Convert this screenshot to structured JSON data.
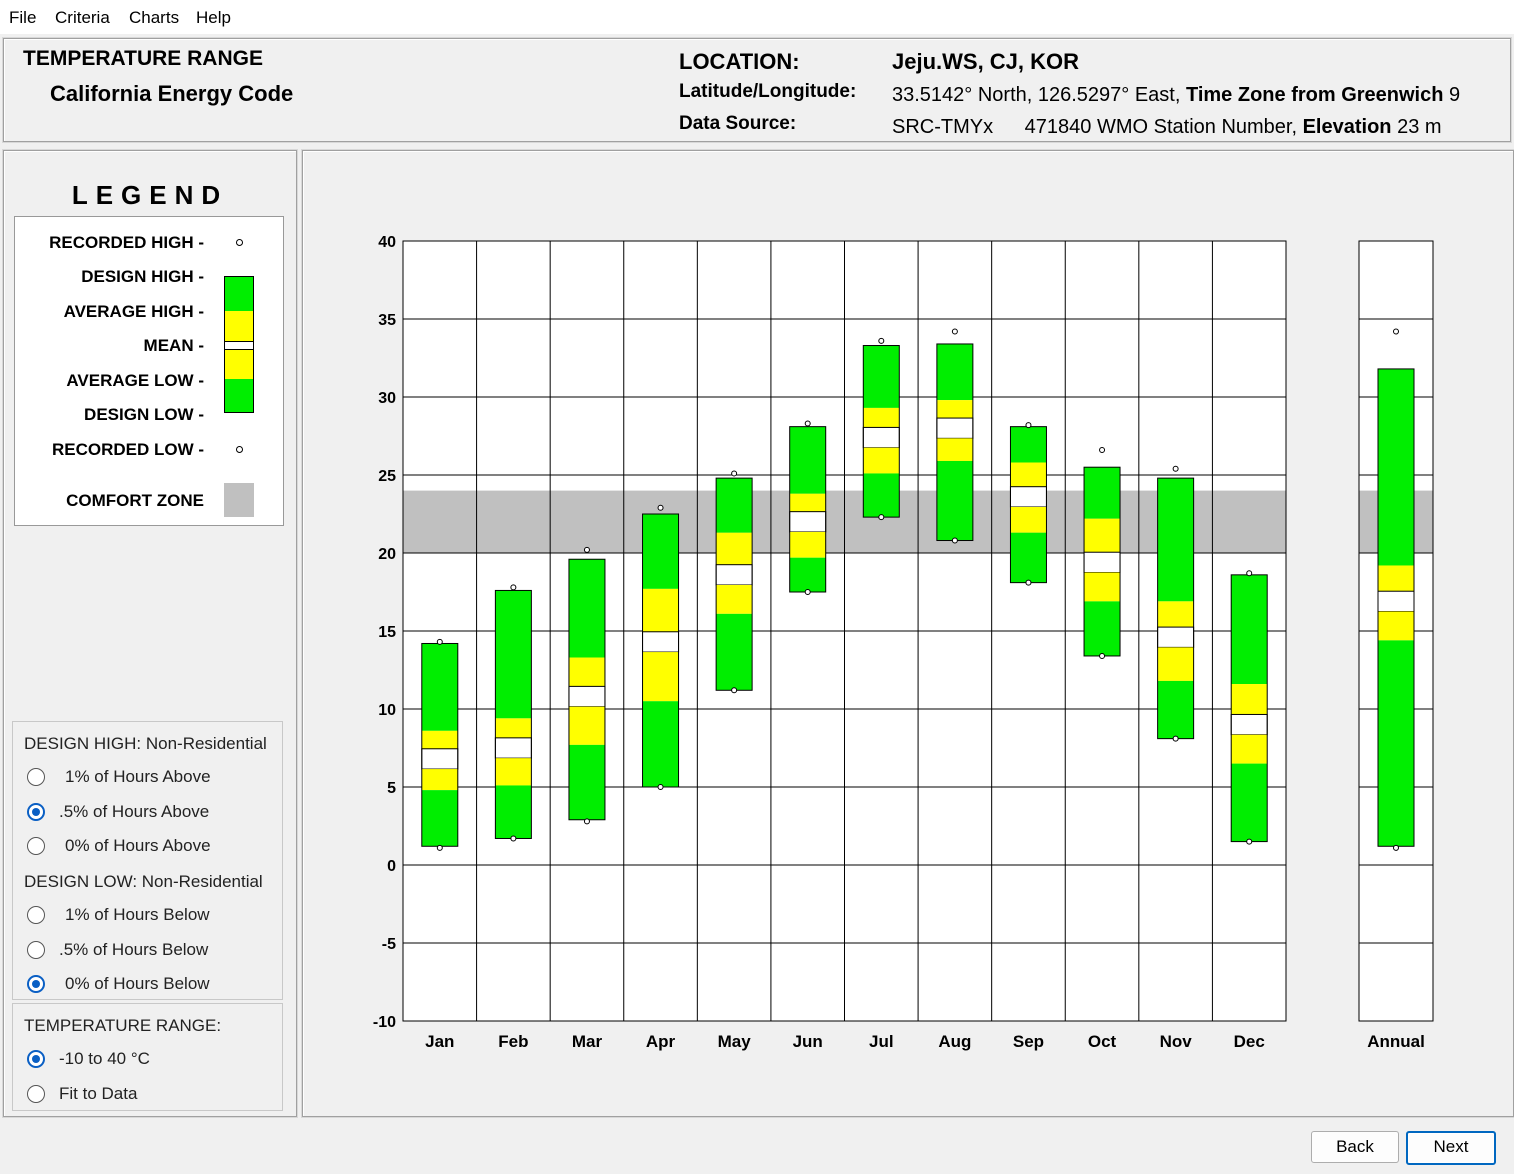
{
  "menu": [
    "File",
    "Criteria",
    "Charts",
    "Help"
  ],
  "header": {
    "title": "TEMPERATURE RANGE",
    "subtitle": "California Energy Code",
    "location_label": "LOCATION:",
    "location_value": "Jeju.WS, CJ, KOR",
    "latlong_label": "Latitude/Longitude:",
    "latlong_value": "33.5142° North, 126.5297° East,",
    "timezone_label": "Time Zone from Greenwich",
    "timezone_value": "9",
    "source_label": "Data Source:",
    "source_value": "SRC-TMYx",
    "station_value": "471840 WMO Station Number,",
    "elevation_label": "Elevation",
    "elevation_value": "23 m"
  },
  "legend": {
    "title": "LEGEND",
    "recorded_high": "RECORDED HIGH -",
    "design_high": "DESIGN HIGH -",
    "average_high": "AVERAGE HIGH -",
    "mean": "MEAN -",
    "average_low": "AVERAGE LOW -",
    "design_low": "DESIGN LOW -",
    "recorded_low": "RECORDED LOW -",
    "comfort_zone": "COMFORT ZONE"
  },
  "options": {
    "design_high_head": "DESIGN HIGH:  Non-Residential",
    "design_high": [
      {
        "label": "1% of Hours Above",
        "selected": false
      },
      {
        "label": ".5% of Hours Above",
        "selected": true
      },
      {
        "label": "0% of Hours Above",
        "selected": false
      }
    ],
    "design_low_head": "DESIGN LOW:  Non-Residential",
    "design_low": [
      {
        "label": "1% of Hours Below",
        "selected": false
      },
      {
        "label": ".5% of Hours Below",
        "selected": false
      },
      {
        "label": "0% of Hours Below",
        "selected": true
      }
    ],
    "range_head": "TEMPERATURE RANGE:",
    "range": [
      {
        "label": "-10 to 40 °C",
        "selected": true
      },
      {
        "label": "Fit to Data",
        "selected": false
      }
    ]
  },
  "buttons": {
    "back": "Back",
    "next": "Next"
  },
  "colors": {
    "design_band": "#00ee00",
    "average_band": "#ffff00",
    "mean_band": "#ffffff",
    "comfort_zone": "#c0c0c0"
  },
  "chart_data": {
    "type": "floating-bar",
    "title": "",
    "xlabel": "",
    "ylabel": "",
    "ylim": [
      -10,
      40
    ],
    "yticks": [
      40,
      35,
      30,
      25,
      20,
      15,
      10,
      5,
      0,
      -5,
      -10
    ],
    "comfort_zone": [
      20,
      24
    ],
    "categories": [
      "Jan",
      "Feb",
      "Mar",
      "Apr",
      "May",
      "Jun",
      "Jul",
      "Aug",
      "Sep",
      "Oct",
      "Nov",
      "Dec",
      "Annual"
    ],
    "recorded_high": [
      14.3,
      17.8,
      20.2,
      22.9,
      25.1,
      28.3,
      33.6,
      34.2,
      28.2,
      26.6,
      25.4,
      18.7,
      34.2
    ],
    "design_high": [
      14.2,
      17.6,
      19.6,
      22.5,
      24.8,
      28.1,
      33.3,
      33.4,
      28.1,
      25.5,
      24.8,
      18.6,
      31.8
    ],
    "average_high": [
      8.6,
      9.4,
      13.3,
      17.7,
      21.3,
      23.8,
      29.3,
      29.8,
      25.8,
      22.2,
      16.9,
      11.6,
      19.2
    ],
    "mean": [
      6.8,
      7.5,
      10.8,
      14.3,
      18.6,
      22.0,
      27.4,
      28.0,
      23.6,
      19.4,
      14.6,
      9.0,
      16.9
    ],
    "average_low": [
      4.8,
      5.1,
      7.7,
      10.5,
      16.1,
      19.7,
      25.1,
      25.9,
      21.3,
      16.9,
      11.8,
      6.5,
      14.4
    ],
    "design_low": [
      1.2,
      1.7,
      2.9,
      5.0,
      11.2,
      17.5,
      22.3,
      20.8,
      18.1,
      13.4,
      8.1,
      1.5,
      1.2
    ],
    "recorded_low": [
      1.1,
      1.7,
      2.8,
      5.0,
      11.2,
      17.5,
      22.3,
      20.8,
      18.1,
      13.4,
      8.1,
      1.5,
      1.1
    ]
  }
}
